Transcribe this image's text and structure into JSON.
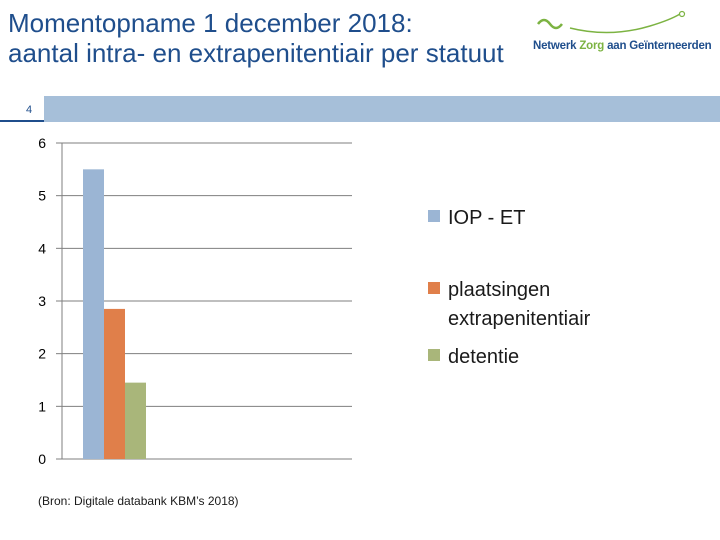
{
  "header": {
    "title_line1": "Momentopname 1 december 2018:",
    "title_line2": "aantal intra- en extrapenitentiair per statuut",
    "slide_number": "4"
  },
  "logo": {
    "part1": "Netwerk ",
    "part2": "Zorg",
    "part3": " aan Geïnterneerden"
  },
  "source_note": "(Bron: Digitale databank KBM’s 2018)",
  "colors": {
    "series1": "#9bb5d4",
    "series2": "#e07f4a",
    "series3": "#a9b67a",
    "grid": "#7f7f7f"
  },
  "chart_data": {
    "type": "bar",
    "title": "",
    "xlabel": "",
    "ylabel": "",
    "ylim": [
      0,
      6
    ],
    "yticks": [
      "0",
      "1",
      "2",
      "3",
      "4",
      "5",
      "6"
    ],
    "categories": [
      ""
    ],
    "series": [
      {
        "name": "IOP - ET",
        "values": [
          5.5
        ]
      },
      {
        "name": "plaatsingen extrapenitentiair",
        "values": [
          2.85
        ]
      },
      {
        "name": "detentie",
        "values": [
          1.45
        ]
      }
    ],
    "legend": [
      "IOP - ET",
      "plaatsingen",
      "extrapenitentiair",
      "detentie"
    ],
    "legend_position": "right"
  }
}
